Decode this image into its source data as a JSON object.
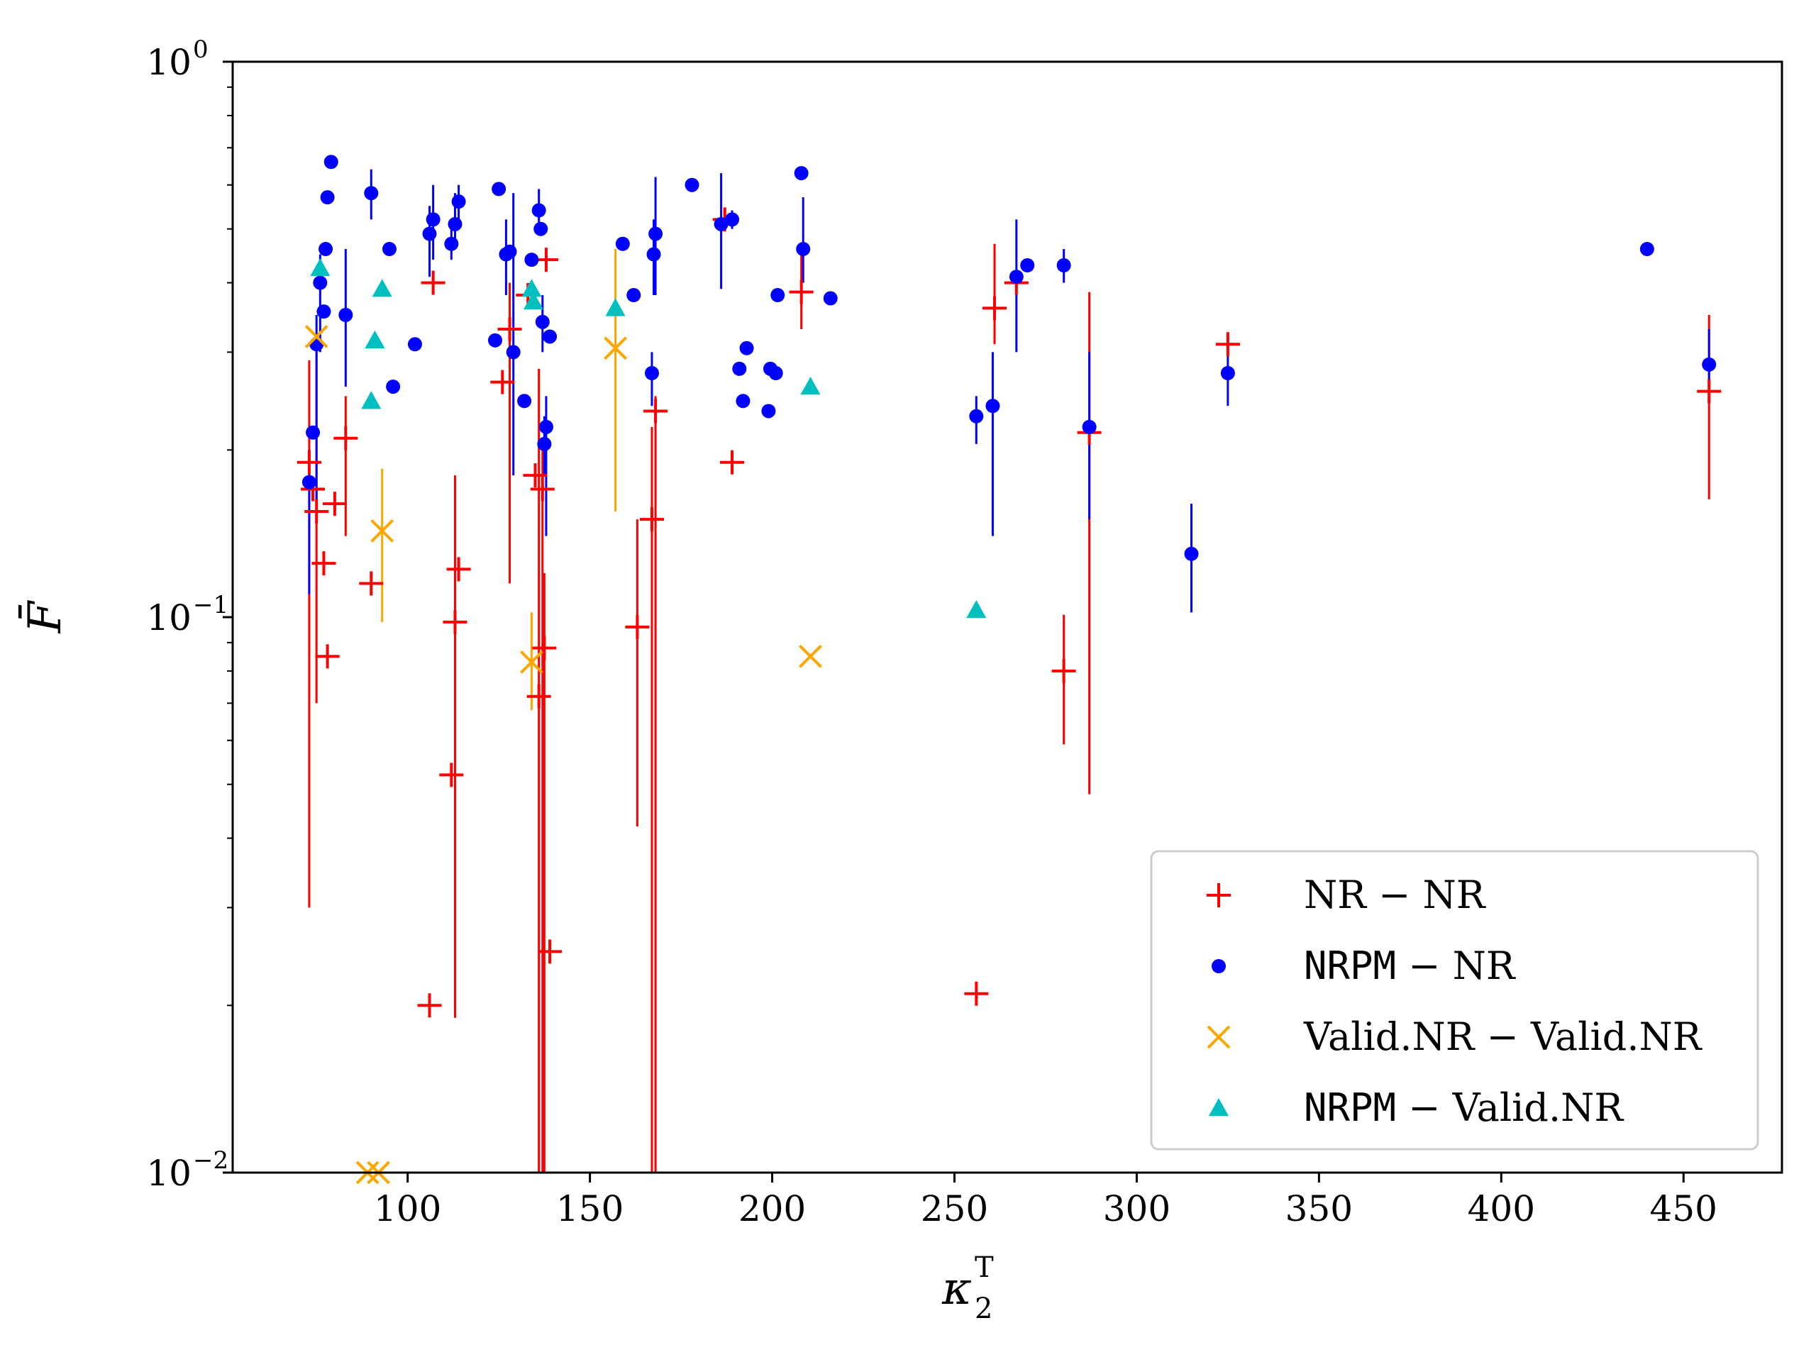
{
  "chart_data": {
    "type": "scatter",
    "xlabel": "κ",
    "xlabel_sub": "2",
    "xlabel_sup": "T",
    "ylabel": "F̄",
    "x_range": [
      52,
      477
    ],
    "y_range": [
      0.01,
      1.0
    ],
    "y_scale": "log",
    "x_ticks": [
      100,
      150,
      200,
      250,
      300,
      350,
      400,
      450
    ],
    "y_ticks": [
      {
        "value": 1.0,
        "base": "10",
        "exp": "0"
      },
      {
        "value": 0.1,
        "base": "10",
        "exp": "−1"
      },
      {
        "value": 0.01,
        "base": "10",
        "exp": "−2"
      }
    ],
    "grid": false,
    "legend_position": "lower-right",
    "series": [
      {
        "name": "NR − NR",
        "name_parts": [
          {
            "text": "NR − NR",
            "mono": false
          }
        ],
        "marker": "plus",
        "color": "#ff0000",
        "points": [
          {
            "x": 73,
            "y": 0.19,
            "err": [
              0.03,
              0.29
            ]
          },
          {
            "x": 74,
            "y": 0.17
          },
          {
            "x": 75,
            "y": 0.155,
            "err": [
              0.07,
              0.3
            ]
          },
          {
            "x": 77,
            "y": 0.125
          },
          {
            "x": 78,
            "y": 0.085
          },
          {
            "x": 80,
            "y": 0.16
          },
          {
            "x": 83,
            "y": 0.21,
            "err": [
              0.14,
              0.25
            ]
          },
          {
            "x": 90,
            "y": 0.115
          },
          {
            "x": 106,
            "y": 0.02
          },
          {
            "x": 107,
            "y": 0.4
          },
          {
            "x": 112,
            "y": 0.052
          },
          {
            "x": 113,
            "y": 0.098,
            "err": [
              0.019,
              0.18
            ]
          },
          {
            "x": 114,
            "y": 0.122
          },
          {
            "x": 126,
            "y": 0.265
          },
          {
            "x": 128,
            "y": 0.33,
            "err": [
              0.115,
              0.4
            ]
          },
          {
            "x": 133,
            "y": 0.38
          },
          {
            "x": 135,
            "y": 0.18
          },
          {
            "x": 136,
            "y": 0.072,
            "err": [
              0.01,
              0.28
            ]
          },
          {
            "x": 137,
            "y": 0.17,
            "err": [
              0.01,
              0.2
            ]
          },
          {
            "x": 137.5,
            "y": 0.088,
            "err": [
              0.01,
              0.12
            ]
          },
          {
            "x": 138,
            "y": 0.44
          },
          {
            "x": 139,
            "y": 0.025
          },
          {
            "x": 167,
            "y": 0.15,
            "err": [
              0.01,
              0.22
            ]
          },
          {
            "x": 168,
            "y": 0.235,
            "err": [
              0.01,
              0.25
            ]
          },
          {
            "x": 163,
            "y": 0.096,
            "err": [
              0.042,
              0.15
            ]
          },
          {
            "x": 187,
            "y": 0.52
          },
          {
            "x": 189,
            "y": 0.19
          },
          {
            "x": 208,
            "y": 0.385,
            "err": [
              0.33,
              0.45
            ]
          },
          {
            "x": 256,
            "y": 0.021
          },
          {
            "x": 261,
            "y": 0.36,
            "err": [
              0.31,
              0.47
            ]
          },
          {
            "x": 267,
            "y": 0.4
          },
          {
            "x": 280,
            "y": 0.08,
            "err": [
              0.059,
              0.101
            ]
          },
          {
            "x": 287,
            "y": 0.215,
            "err": [
              0.048,
              0.385
            ]
          },
          {
            "x": 325,
            "y": 0.31
          },
          {
            "x": 457,
            "y": 0.255,
            "err": [
              0.163,
              0.35
            ]
          }
        ]
      },
      {
        "name": "NRPM − NR",
        "name_parts": [
          {
            "text": "NRPM",
            "mono": true
          },
          {
            "text": " − NR",
            "mono": false
          }
        ],
        "marker": "circle",
        "color": "#0000ff",
        "points": [
          {
            "x": 73,
            "y": 0.175,
            "err": [
              0.11,
              0.2
            ]
          },
          {
            "x": 74,
            "y": 0.215
          },
          {
            "x": 75,
            "y": 0.31,
            "err": [
              0.15,
              0.35
            ]
          },
          {
            "x": 76,
            "y": 0.4,
            "err": [
              0.3,
              0.45
            ]
          },
          {
            "x": 77,
            "y": 0.355
          },
          {
            "x": 77.5,
            "y": 0.46
          },
          {
            "x": 78,
            "y": 0.57
          },
          {
            "x": 79,
            "y": 0.66
          },
          {
            "x": 83,
            "y": 0.35,
            "err": [
              0.26,
              0.46
            ]
          },
          {
            "x": 90,
            "y": 0.58,
            "err": [
              0.52,
              0.64
            ]
          },
          {
            "x": 95,
            "y": 0.46
          },
          {
            "x": 96,
            "y": 0.26
          },
          {
            "x": 102,
            "y": 0.31
          },
          {
            "x": 106,
            "y": 0.49,
            "err": [
              0.41,
              0.55
            ]
          },
          {
            "x": 107,
            "y": 0.52,
            "err": [
              0.44,
              0.6
            ]
          },
          {
            "x": 112,
            "y": 0.47,
            "err": [
              0.44,
              0.5
            ]
          },
          {
            "x": 113,
            "y": 0.51,
            "err": [
              0.46,
              0.58
            ]
          },
          {
            "x": 114,
            "y": 0.56,
            "err": [
              0.5,
              0.6
            ]
          },
          {
            "x": 124,
            "y": 0.315
          },
          {
            "x": 125,
            "y": 0.59
          },
          {
            "x": 127,
            "y": 0.45,
            "err": [
              0.38,
              0.52
            ]
          },
          {
            "x": 128,
            "y": 0.455
          },
          {
            "x": 129,
            "y": 0.3,
            "err": [
              0.18,
              0.58
            ]
          },
          {
            "x": 132,
            "y": 0.245
          },
          {
            "x": 134,
            "y": 0.44
          },
          {
            "x": 136,
            "y": 0.54,
            "err": [
              0.49,
              0.59
            ]
          },
          {
            "x": 136.5,
            "y": 0.5
          },
          {
            "x": 137,
            "y": 0.34,
            "err": [
              0.3,
              0.38
            ]
          },
          {
            "x": 137.5,
            "y": 0.205,
            "err": [
              0.18,
              0.23
            ]
          },
          {
            "x": 138,
            "y": 0.22,
            "err": [
              0.14,
              0.25
            ]
          },
          {
            "x": 139,
            "y": 0.32
          },
          {
            "x": 159,
            "y": 0.47
          },
          {
            "x": 162,
            "y": 0.38
          },
          {
            "x": 167,
            "y": 0.275,
            "err": [
              0.24,
              0.3
            ]
          },
          {
            "x": 167.5,
            "y": 0.45,
            "err": [
              0.38,
              0.52
            ]
          },
          {
            "x": 168,
            "y": 0.49,
            "err": [
              0.38,
              0.62
            ]
          },
          {
            "x": 178,
            "y": 0.6
          },
          {
            "x": 186,
            "y": 0.51,
            "err": [
              0.39,
              0.63
            ]
          },
          {
            "x": 189,
            "y": 0.52,
            "err": [
              0.5,
              0.54
            ]
          },
          {
            "x": 191,
            "y": 0.28
          },
          {
            "x": 192,
            "y": 0.245
          },
          {
            "x": 193,
            "y": 0.305
          },
          {
            "x": 199,
            "y": 0.235
          },
          {
            "x": 199.5,
            "y": 0.28
          },
          {
            "x": 201,
            "y": 0.275
          },
          {
            "x": 201.5,
            "y": 0.38
          },
          {
            "x": 208,
            "y": 0.63
          },
          {
            "x": 208.5,
            "y": 0.46,
            "err": [
              0.4,
              0.57
            ]
          },
          {
            "x": 216,
            "y": 0.375
          },
          {
            "x": 256,
            "y": 0.23,
            "err": [
              0.205,
              0.25
            ]
          },
          {
            "x": 260.5,
            "y": 0.24,
            "err": [
              0.14,
              0.3
            ]
          },
          {
            "x": 267,
            "y": 0.41,
            "err": [
              0.3,
              0.52
            ]
          },
          {
            "x": 270,
            "y": 0.43
          },
          {
            "x": 280,
            "y": 0.43,
            "err": [
              0.4,
              0.46
            ]
          },
          {
            "x": 287,
            "y": 0.22,
            "err": [
              0.15,
              0.3
            ]
          },
          {
            "x": 315,
            "y": 0.13,
            "err": [
              0.102,
              0.16
            ]
          },
          {
            "x": 325,
            "y": 0.275,
            "err": [
              0.24,
              0.3
            ]
          },
          {
            "x": 440,
            "y": 0.46
          },
          {
            "x": 457,
            "y": 0.285,
            "err": [
              0.25,
              0.33
            ]
          }
        ]
      },
      {
        "name": "Valid.NR − Valid.NR",
        "name_parts": [
          {
            "text": "Valid.NR − Valid.NR",
            "mono": false
          }
        ],
        "marker": "x",
        "color": "#ffa500",
        "points": [
          {
            "x": 75,
            "y": 0.32
          },
          {
            "x": 89,
            "y": 0.01
          },
          {
            "x": 92,
            "y": 0.01
          },
          {
            "x": 93,
            "y": 0.143,
            "err": [
              0.098,
              0.185
            ]
          },
          {
            "x": 134,
            "y": 0.083,
            "err": [
              0.068,
              0.102
            ]
          },
          {
            "x": 157,
            "y": 0.305,
            "err": [
              0.155,
              0.46
            ]
          },
          {
            "x": 210.5,
            "y": 0.085
          }
        ]
      },
      {
        "name": "NRPM − Valid.NR",
        "name_parts": [
          {
            "text": "NRPM",
            "mono": true
          },
          {
            "text": " − Valid.NR",
            "mono": false
          }
        ],
        "marker": "triangle",
        "color": "#00bfbf",
        "points": [
          {
            "x": 76,
            "y": 0.425
          },
          {
            "x": 90,
            "y": 0.245
          },
          {
            "x": 91,
            "y": 0.315
          },
          {
            "x": 93,
            "y": 0.39
          },
          {
            "x": 134,
            "y": 0.39
          },
          {
            "x": 134.5,
            "y": 0.37
          },
          {
            "x": 157,
            "y": 0.36
          },
          {
            "x": 210.5,
            "y": 0.26
          },
          {
            "x": 256,
            "y": 0.103
          }
        ]
      }
    ]
  }
}
